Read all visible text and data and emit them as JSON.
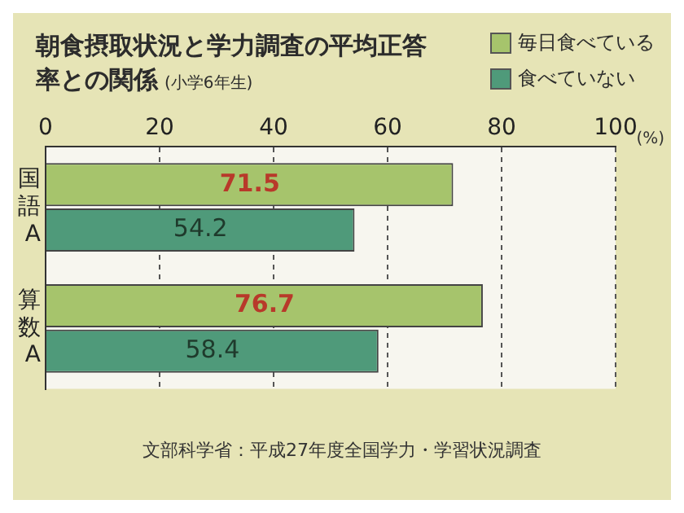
{
  "chart_data": {
    "type": "bar",
    "orientation": "horizontal",
    "title": "朝食摂取状況と学力調査の平均正答率との関係",
    "subtitle": "(小学6年生)",
    "xlabel": "(%)",
    "categories": [
      "国語A",
      "算数A"
    ],
    "series": [
      {
        "name": "毎日食べている",
        "color": "#a6c46c",
        "values": [
          71.5,
          76.7
        ]
      },
      {
        "name": "食べていない",
        "color": "#4f9a7a",
        "values": [
          54.2,
          58.4
        ]
      }
    ],
    "xlim": [
      0,
      100
    ],
    "xticks": [
      0,
      20,
      40,
      60,
      80,
      100
    ],
    "grid": "x",
    "legend": "top right",
    "data_labels": true,
    "annotations": [
      "文部科学省：平成27年度全国学力・学習状況調査"
    ]
  }
}
